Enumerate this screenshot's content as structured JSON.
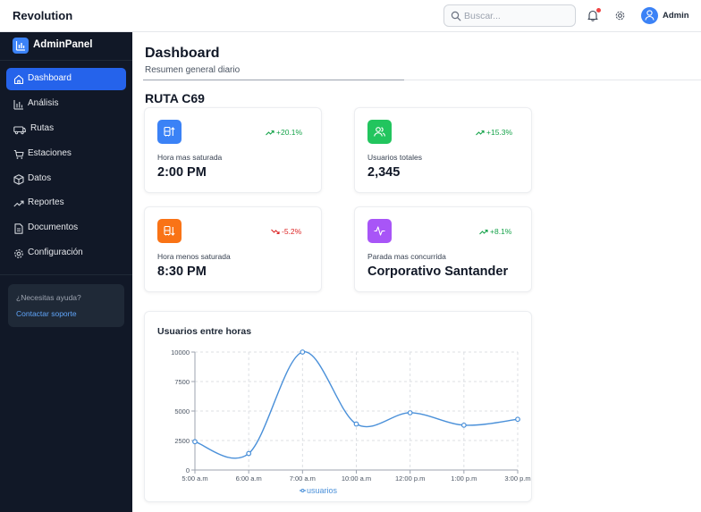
{
  "topbar": {
    "brand": "Revolution",
    "search_placeholder": "Buscar...",
    "user": "Admin"
  },
  "sidebar": {
    "logo": "AdminPanel",
    "items": [
      {
        "label": "Dashboard",
        "icon": "home-icon",
        "active": true
      },
      {
        "label": "Análisis",
        "icon": "bar-chart-icon"
      },
      {
        "label": "Rutas",
        "icon": "bus-icon"
      },
      {
        "label": "Estaciones",
        "icon": "cart-icon"
      },
      {
        "label": "Datos",
        "icon": "box-icon"
      },
      {
        "label": "Reportes",
        "icon": "trending-up-icon"
      },
      {
        "label": "Documentos",
        "icon": "document-icon"
      },
      {
        "label": "Configuración",
        "icon": "gear-icon"
      }
    ],
    "help": {
      "question": "¿Necesitas ayuda?",
      "link": "Contactar soporte"
    }
  },
  "main": {
    "title": "Dashboard",
    "subtitle": "Resumen general diario",
    "route": "RUTA C69",
    "cards": [
      {
        "label": "Hora mas saturada",
        "value": "2:00 PM",
        "trend": "+20.1%",
        "trend_dir": "up",
        "icon": "bus-up-icon",
        "color": "#3b82f6"
      },
      {
        "label": "Usuarios totales",
        "value": "2,345",
        "trend": "+15.3%",
        "trend_dir": "up",
        "icon": "users-icon",
        "color": "#22c55e"
      },
      {
        "label": "Hora menos saturada",
        "value": "8:30 PM",
        "trend": "-5.2%",
        "trend_dir": "down",
        "icon": "bus-down-icon",
        "color": "#f97316"
      },
      {
        "label": "Parada mas concurrida",
        "value": "Corporativo Santander",
        "trend": "+8.1%",
        "trend_dir": "up",
        "icon": "activity-icon",
        "color": "#a855f7"
      }
    ]
  },
  "colors": {
    "accent": "#2563eb",
    "up": "#16a34a",
    "down": "#dc2626",
    "line": "#4a90d9"
  },
  "chart_data": {
    "type": "line",
    "title": "Usuarios entre horas",
    "categories": [
      "5:00 a.m",
      "6:00 a.m",
      "7:00 a.m",
      "10:00 a.m",
      "12:00 p.m",
      "1:00 p.m",
      "3:00 p.m"
    ],
    "series": [
      {
        "name": "usuarios",
        "values": [
          2400,
          1400,
          10000,
          3900,
          4850,
          3800,
          4300
        ]
      }
    ],
    "yticks": [
      0,
      2500,
      5000,
      7500,
      10000
    ],
    "ylim": [
      0,
      10000
    ],
    "grid": true,
    "legend": "bottom"
  }
}
